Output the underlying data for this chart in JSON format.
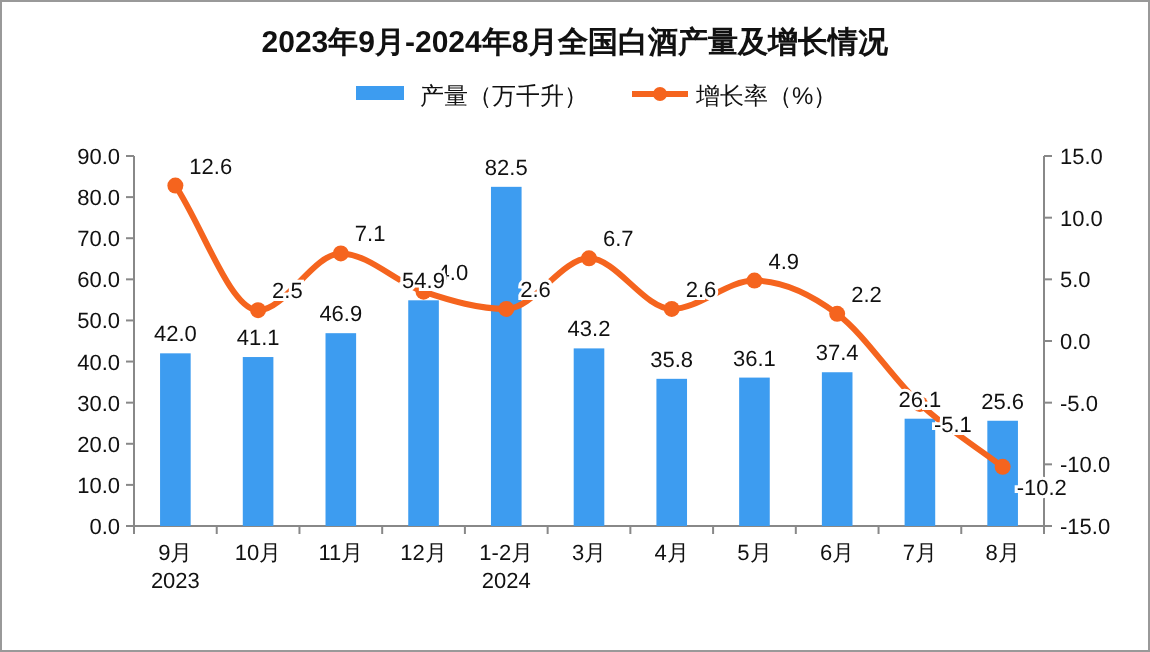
{
  "chart_data": {
    "type": "bar",
    "title": "2023年9月-2024年8月全国白酒产量及增长情况",
    "categories": [
      "9月\n2023",
      "10月",
      "11月",
      "12月",
      "1-2月\n2024",
      "3月",
      "4月",
      "5月",
      "6月",
      "7月",
      "8月"
    ],
    "series": [
      {
        "name": "产量（万千升）",
        "type": "bar",
        "color": "#3d9cf0",
        "values": [
          42.0,
          41.1,
          46.9,
          54.9,
          82.5,
          43.2,
          35.8,
          36.1,
          37.4,
          26.1,
          25.6
        ],
        "value_labels": [
          "42.0",
          "41.1",
          "46.9",
          "54.9",
          "82.5",
          "43.2",
          "35.8",
          "36.1",
          "37.4",
          "26.1",
          "25.6"
        ]
      },
      {
        "name": "增长率（%）",
        "type": "line",
        "axis": "y2",
        "color": "#f5641e",
        "marker": "circle",
        "line_style": "solid",
        "values": [
          12.6,
          2.5,
          7.1,
          4.0,
          2.6,
          6.7,
          2.6,
          4.9,
          2.2,
          -5.1,
          -10.2
        ],
        "value_labels": [
          "12.6",
          "2.5",
          "7.1",
          "4.0",
          "2.6",
          "6.7",
          "2.6",
          "4.9",
          "2.2",
          "-5.1",
          "-10.2"
        ]
      }
    ],
    "ylim": [
      0,
      90
    ],
    "yticks": [
      {
        "value": 0,
        "label": "0.0"
      },
      {
        "value": 10,
        "label": "10.0"
      },
      {
        "value": 20,
        "label": "20.0"
      },
      {
        "value": 30,
        "label": "30.0"
      },
      {
        "value": 40,
        "label": "40.0"
      },
      {
        "value": 50,
        "label": "50.0"
      },
      {
        "value": 60,
        "label": "60.0"
      },
      {
        "value": 70,
        "label": "70.0"
      },
      {
        "value": 80,
        "label": "80.0"
      },
      {
        "value": 90,
        "label": "90.0"
      }
    ],
    "y2lim": [
      -15,
      15
    ],
    "y2ticks": [
      {
        "value": -15,
        "label": "-15.0"
      },
      {
        "value": -10,
        "label": "-10.0"
      },
      {
        "value": -5,
        "label": "-5.0"
      },
      {
        "value": 0,
        "label": "0.0"
      },
      {
        "value": 5,
        "label": "5.0"
      },
      {
        "value": 10,
        "label": "10.0"
      },
      {
        "value": 15,
        "label": "15.0"
      }
    ],
    "legend": "top",
    "grid": false
  }
}
